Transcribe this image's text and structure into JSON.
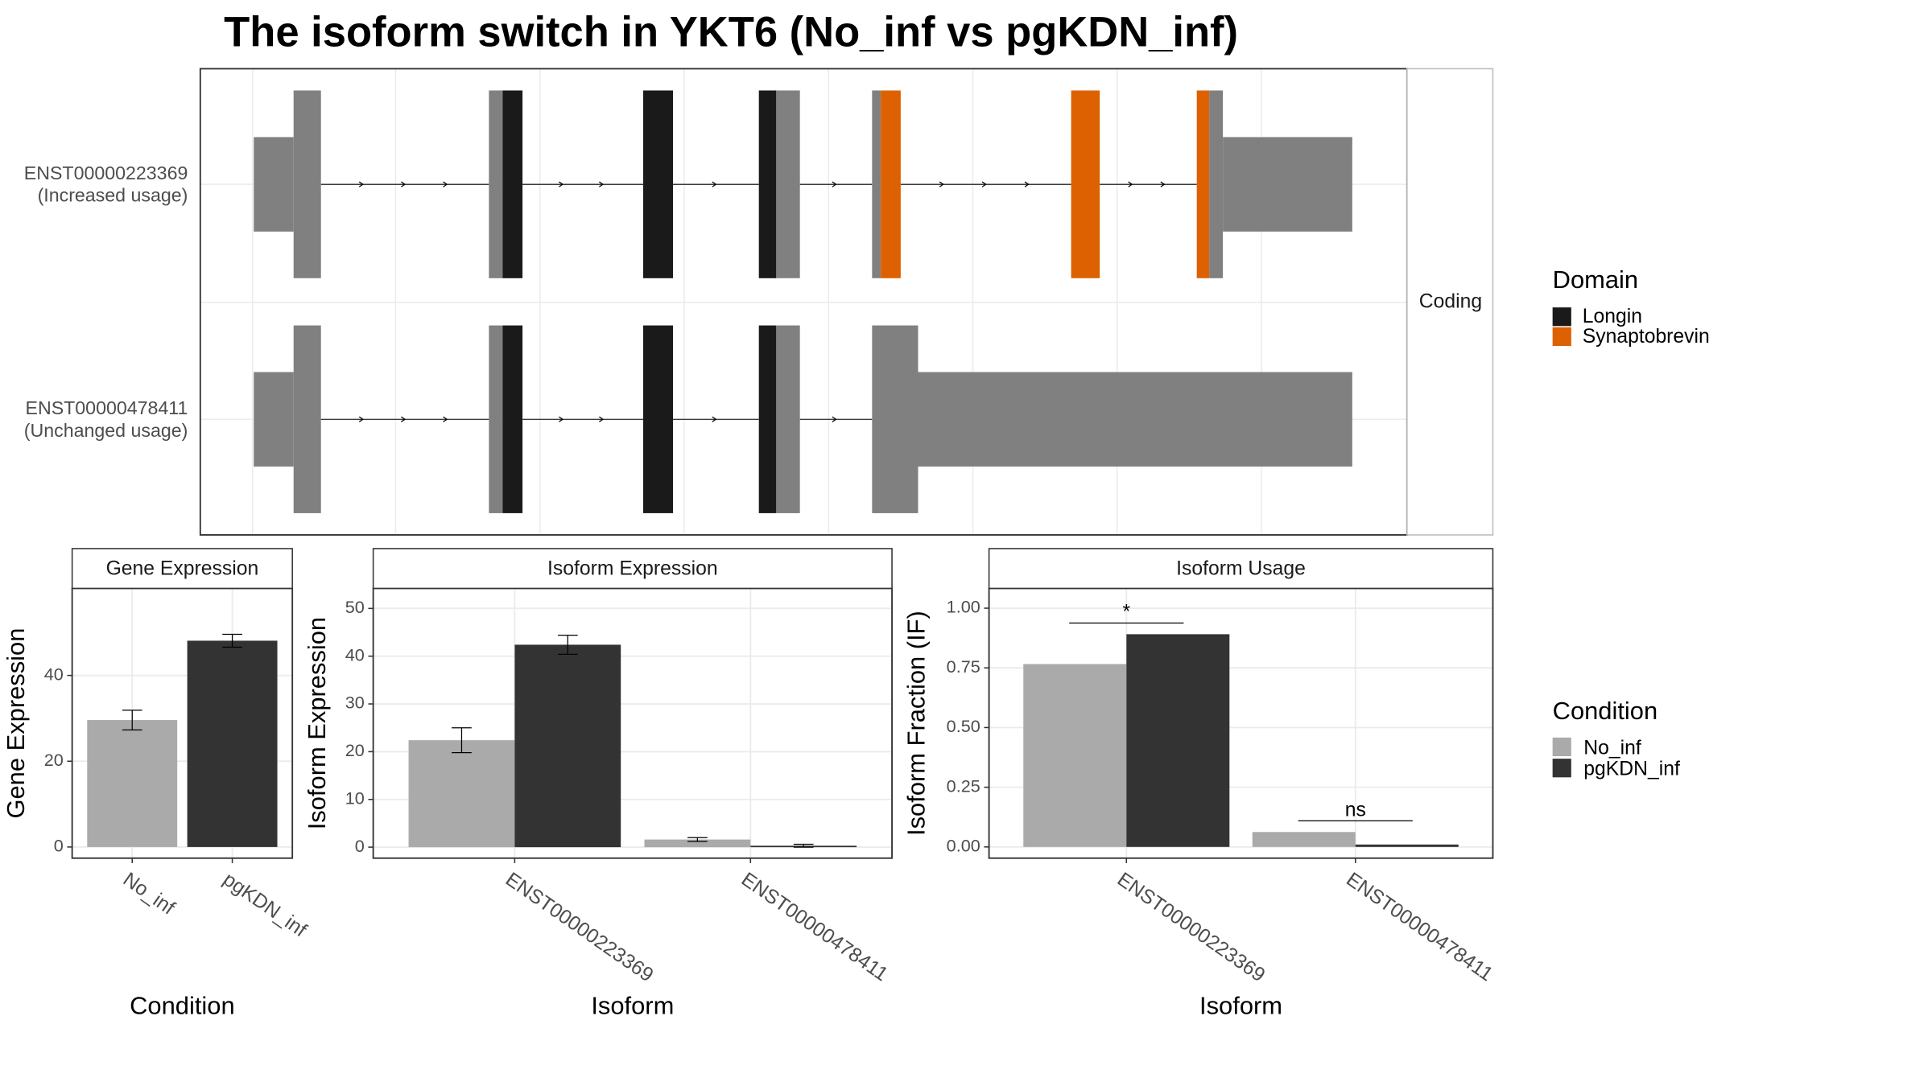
{
  "chart_data": [
    {
      "type": "transcript",
      "title": "The isoform switch in YKT6 (No_inf vs pgKDN_inf)",
      "rows": [
        {
          "id": "ENST00000223369",
          "label": "(Increased usage)"
        },
        {
          "id": "ENST00000478411",
          "label": "(Unchanged usage)"
        }
      ],
      "strip": "Coding",
      "legend": {
        "title": "Domain",
        "items": [
          {
            "name": "Longin",
            "color": "#1a1a1a"
          },
          {
            "name": "Synaptobrevin",
            "color": "#dd6100"
          }
        ]
      }
    },
    {
      "type": "bar",
      "title": "Gene Expression",
      "x_label": "Condition",
      "y_label": "Gene Expression",
      "categories": [
        "No_inf",
        "pgKDN_inf"
      ],
      "values": [
        29.6,
        48.1
      ],
      "errors": [
        2.3,
        1.5
      ],
      "colors": [
        "#aaaaaa",
        "#333333"
      ],
      "ylim": [
        -2.6,
        60.3
      ],
      "yticks": [
        0,
        20,
        40
      ],
      "grid": true
    },
    {
      "type": "grouped_bar",
      "title": "Isoform Expression",
      "x_label": "Isoform",
      "y_label": "Isoform Expression",
      "categories": [
        "ENST00000223369",
        "ENST00000478411"
      ],
      "series": [
        {
          "name": "No_inf",
          "color": "#aaaaaa",
          "values": [
            22.4,
            1.6
          ],
          "errors": [
            2.6,
            0.4
          ]
        },
        {
          "name": "pgKDN_inf",
          "color": "#333333",
          "values": [
            42.4,
            0.3
          ],
          "errors": [
            2.0,
            0.3
          ]
        }
      ],
      "legend_title": "Condition",
      "ylim": [
        -2.3,
        54.2
      ],
      "yticks": [
        0,
        10,
        20,
        30,
        40,
        50
      ],
      "grid": true
    },
    {
      "type": "grouped_bar",
      "title": "Isoform Usage",
      "x_label": "Isoform",
      "y_label": "Isoform Fraction (IF)",
      "categories": [
        "ENST00000223369",
        "ENST00000478411"
      ],
      "series": [
        {
          "name": "No_inf",
          "color": "#aaaaaa",
          "values": [
            0.766,
            0.0625
          ]
        },
        {
          "name": "pgKDN_inf",
          "color": "#333333",
          "values": [
            0.891,
            0.01
          ]
        }
      ],
      "annotations": [
        "*",
        "ns"
      ],
      "ylim": [
        -0.047,
        1.083
      ],
      "yticks": [
        {
          "value": 0,
          "label": "0.00"
        },
        {
          "value": 0.25,
          "label": "0.25"
        },
        {
          "value": 0.5,
          "label": "0.50"
        },
        {
          "value": 0.75,
          "label": "0.75"
        },
        {
          "value": 1,
          "label": "1.00"
        }
      ],
      "grid": true
    }
  ]
}
